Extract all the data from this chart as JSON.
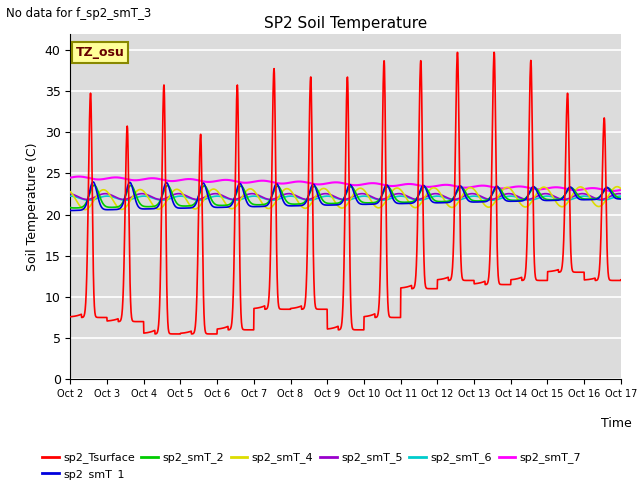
{
  "title": "SP2 Soil Temperature",
  "ylabel": "Soil Temperature (C)",
  "xlabel": "Time",
  "top_label": "No data for f_sp2_smT_3",
  "tz_label": "TZ_osu",
  "ylim": [
    0,
    42
  ],
  "yticks": [
    0,
    5,
    10,
    15,
    20,
    25,
    30,
    35,
    40
  ],
  "xtick_labels": [
    "Oct 2",
    "Oct 3",
    "Oct 4",
    "Oct 5",
    "Oct 6",
    "Oct 7",
    "Oct 8",
    "Oct 9",
    "Oct 10",
    "Oct 11",
    "Oct 12",
    "Oct 13",
    "Oct 14",
    "Oct 15",
    "Oct 16",
    "Oct 17"
  ],
  "bg_color": "#dcdcdc",
  "grid_color": "#ffffff",
  "series_colors": {
    "sp2_Tsurface": "#ff0000",
    "sp2_smT_1": "#0000dd",
    "sp2_smT_2": "#00cc00",
    "sp2_smT_4": "#dddd00",
    "sp2_smT_5": "#9900cc",
    "sp2_smT_6": "#00cccc",
    "sp2_smT_7": "#ff00ff"
  },
  "legend_labels": [
    "sp2_Tsurface",
    "sp2_smT_1",
    "sp2_smT_2",
    "sp2_smT_4",
    "sp2_smT_5",
    "sp2_smT_6",
    "sp2_smT_7"
  ]
}
